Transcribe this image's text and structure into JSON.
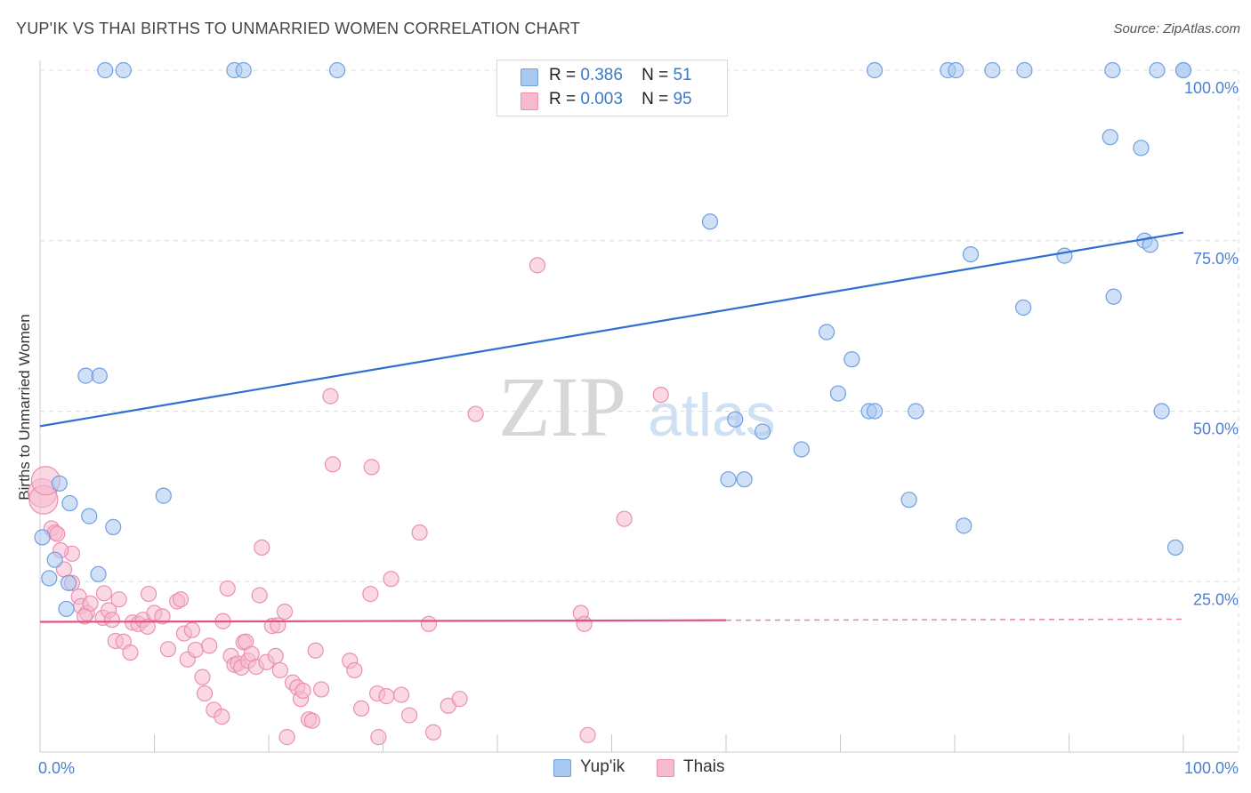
{
  "header": {
    "title": "YUP'IK VS THAI BIRTHS TO UNMARRIED WOMEN CORRELATION CHART",
    "source": "Source: ZipAtlas.com"
  },
  "watermark": {
    "zip": "ZIP",
    "atlas": "atlas"
  },
  "legend": {
    "rows": [
      {
        "r_label": "R =",
        "r_value": "0.386",
        "n_label": "N =",
        "n_value": "51"
      },
      {
        "r_label": "R =",
        "r_value": "0.003",
        "n_label": "N =",
        "n_value": "95"
      }
    ],
    "bottom": [
      "Yup'ik",
      "Thais"
    ]
  },
  "colors": {
    "blue_fill": "#a9c8f0",
    "blue_stroke": "#6f9fe0",
    "blue_line": "#2f6fd0",
    "pink_fill": "#f6b9cd",
    "pink_stroke": "#ec8fb0",
    "pink_line": "#e0508a",
    "axis_text": "#4a7fd4",
    "grid": "#dcdcdc"
  },
  "chart_data": {
    "type": "scatter",
    "title": "YUP'IK VS THAI BIRTHS TO UNMARRIED WOMEN CORRELATION CHART",
    "xlabel": "",
    "ylabel": "Births to Unmarried Women",
    "xlim": [
      0,
      100
    ],
    "ylim": [
      0,
      100
    ],
    "x_tick_labels": [
      "0.0%",
      "100.0%"
    ],
    "y_ticks": [
      25,
      50,
      75,
      100
    ],
    "y_tick_labels": [
      "25.0%",
      "50.0%",
      "75.0%",
      "100.0%"
    ],
    "grid": true,
    "series": [
      {
        "name": "Yup'ik",
        "R": 0.386,
        "N": 51,
        "trend": {
          "x": [
            0,
            100
          ],
          "y": [
            47.8,
            76.2
          ],
          "dashed_from": null
        },
        "points": [
          [
            0.2,
            31.5
          ],
          [
            0.8,
            25.5
          ],
          [
            1.7,
            39.4
          ],
          [
            1.3,
            28.2
          ],
          [
            2.3,
            21.0
          ],
          [
            2.6,
            36.5
          ],
          [
            2.5,
            24.8
          ],
          [
            4.3,
            34.6
          ],
          [
            5.1,
            26.1
          ],
          [
            6.4,
            33.0
          ],
          [
            4.0,
            55.2
          ],
          [
            5.2,
            55.2
          ],
          [
            5.7,
            100
          ],
          [
            7.3,
            100
          ],
          [
            17.0,
            100
          ],
          [
            17.8,
            100
          ],
          [
            26.0,
            100
          ],
          [
            10.8,
            37.6
          ],
          [
            58.6,
            77.8
          ],
          [
            68.8,
            61.6
          ],
          [
            69.8,
            52.6
          ],
          [
            71.0,
            57.6
          ],
          [
            72.5,
            50.0
          ],
          [
            73.0,
            50.0
          ],
          [
            76.6,
            50.0
          ],
          [
            60.8,
            48.8
          ],
          [
            63.2,
            47.0
          ],
          [
            66.6,
            44.4
          ],
          [
            60.2,
            40.0
          ],
          [
            61.6,
            40.0
          ],
          [
            76.0,
            37.0
          ],
          [
            80.8,
            33.2
          ],
          [
            81.4,
            73.0
          ],
          [
            86.0,
            65.2
          ],
          [
            89.6,
            72.8
          ],
          [
            93.6,
            90.2
          ],
          [
            93.9,
            66.8
          ],
          [
            96.3,
            88.6
          ],
          [
            96.6,
            75.0
          ],
          [
            97.1,
            74.4
          ],
          [
            98.1,
            50.0
          ],
          [
            99.3,
            30.0
          ],
          [
            73.0,
            100
          ],
          [
            79.4,
            100
          ],
          [
            80.1,
            100
          ],
          [
            83.3,
            100
          ],
          [
            86.1,
            100
          ],
          [
            93.8,
            100
          ],
          [
            97.7,
            100
          ],
          [
            100.0,
            100
          ],
          [
            100.0,
            100
          ]
        ]
      },
      {
        "name": "Thais",
        "R": 0.003,
        "N": 95,
        "trend": {
          "x": [
            0,
            100
          ],
          "y": [
            19.1,
            19.5
          ],
          "dashed_from": 60
        },
        "points": [
          [
            0.2,
            38.0
          ],
          [
            0.3,
            37.0
          ],
          [
            1.0,
            32.8
          ],
          [
            1.3,
            32.2
          ],
          [
            1.5,
            32.0
          ],
          [
            2.1,
            26.8
          ],
          [
            2.8,
            29.1
          ],
          [
            2.8,
            24.8
          ],
          [
            3.4,
            22.8
          ],
          [
            3.6,
            21.4
          ],
          [
            4.1,
            20.4
          ],
          [
            4.4,
            21.8
          ],
          [
            5.5,
            19.7
          ],
          [
            5.6,
            23.3
          ],
          [
            6.0,
            20.8
          ],
          [
            6.3,
            19.4
          ],
          [
            6.6,
            16.3
          ],
          [
            6.9,
            22.4
          ],
          [
            7.3,
            16.2
          ],
          [
            7.9,
            14.6
          ],
          [
            8.1,
            19.0
          ],
          [
            8.6,
            18.8
          ],
          [
            9.0,
            19.4
          ],
          [
            9.4,
            18.4
          ],
          [
            9.5,
            23.2
          ],
          [
            10.0,
            20.4
          ],
          [
            10.7,
            19.9
          ],
          [
            11.2,
            15.1
          ],
          [
            12.0,
            22.1
          ],
          [
            12.3,
            22.4
          ],
          [
            12.6,
            17.4
          ],
          [
            12.9,
            13.6
          ],
          [
            13.3,
            17.9
          ],
          [
            13.6,
            15.0
          ],
          [
            14.2,
            11.0
          ],
          [
            14.4,
            8.6
          ],
          [
            14.8,
            15.6
          ],
          [
            15.2,
            6.2
          ],
          [
            15.9,
            5.2
          ],
          [
            16.0,
            19.2
          ],
          [
            16.4,
            24.0
          ],
          [
            16.7,
            14.1
          ],
          [
            17.0,
            12.8
          ],
          [
            17.3,
            13.0
          ],
          [
            17.6,
            12.4
          ],
          [
            17.8,
            16.1
          ],
          [
            18.0,
            16.2
          ],
          [
            18.2,
            13.4
          ],
          [
            18.5,
            14.4
          ],
          [
            18.9,
            12.5
          ],
          [
            19.2,
            23.0
          ],
          [
            19.4,
            30.0
          ],
          [
            19.8,
            13.2
          ],
          [
            20.3,
            18.5
          ],
          [
            20.6,
            14.1
          ],
          [
            20.8,
            18.6
          ],
          [
            21.0,
            12.0
          ],
          [
            21.4,
            20.6
          ],
          [
            21.6,
            2.2
          ],
          [
            22.1,
            10.2
          ],
          [
            22.5,
            9.5
          ],
          [
            22.8,
            7.8
          ],
          [
            23.0,
            9.0
          ],
          [
            23.5,
            4.8
          ],
          [
            23.8,
            4.6
          ],
          [
            24.1,
            14.9
          ],
          [
            24.6,
            9.2
          ],
          [
            25.4,
            52.2
          ],
          [
            25.6,
            42.2
          ],
          [
            27.1,
            13.4
          ],
          [
            27.5,
            12.0
          ],
          [
            28.1,
            6.4
          ],
          [
            28.9,
            23.2
          ],
          [
            29.0,
            41.8
          ],
          [
            29.5,
            8.6
          ],
          [
            29.6,
            2.2
          ],
          [
            30.3,
            8.2
          ],
          [
            30.7,
            25.4
          ],
          [
            31.6,
            8.4
          ],
          [
            32.3,
            5.4
          ],
          [
            33.2,
            32.2
          ],
          [
            34.0,
            18.8
          ],
          [
            34.4,
            2.9
          ],
          [
            35.7,
            6.8
          ],
          [
            36.7,
            7.8
          ],
          [
            38.1,
            49.6
          ],
          [
            43.5,
            71.4
          ],
          [
            47.3,
            20.4
          ],
          [
            47.6,
            18.8
          ],
          [
            47.9,
            2.5
          ],
          [
            51.1,
            34.2
          ],
          [
            54.3,
            52.4
          ],
          [
            0.5,
            39.8
          ],
          [
            1.8,
            29.6
          ],
          [
            3.9,
            19.9
          ]
        ]
      }
    ]
  }
}
